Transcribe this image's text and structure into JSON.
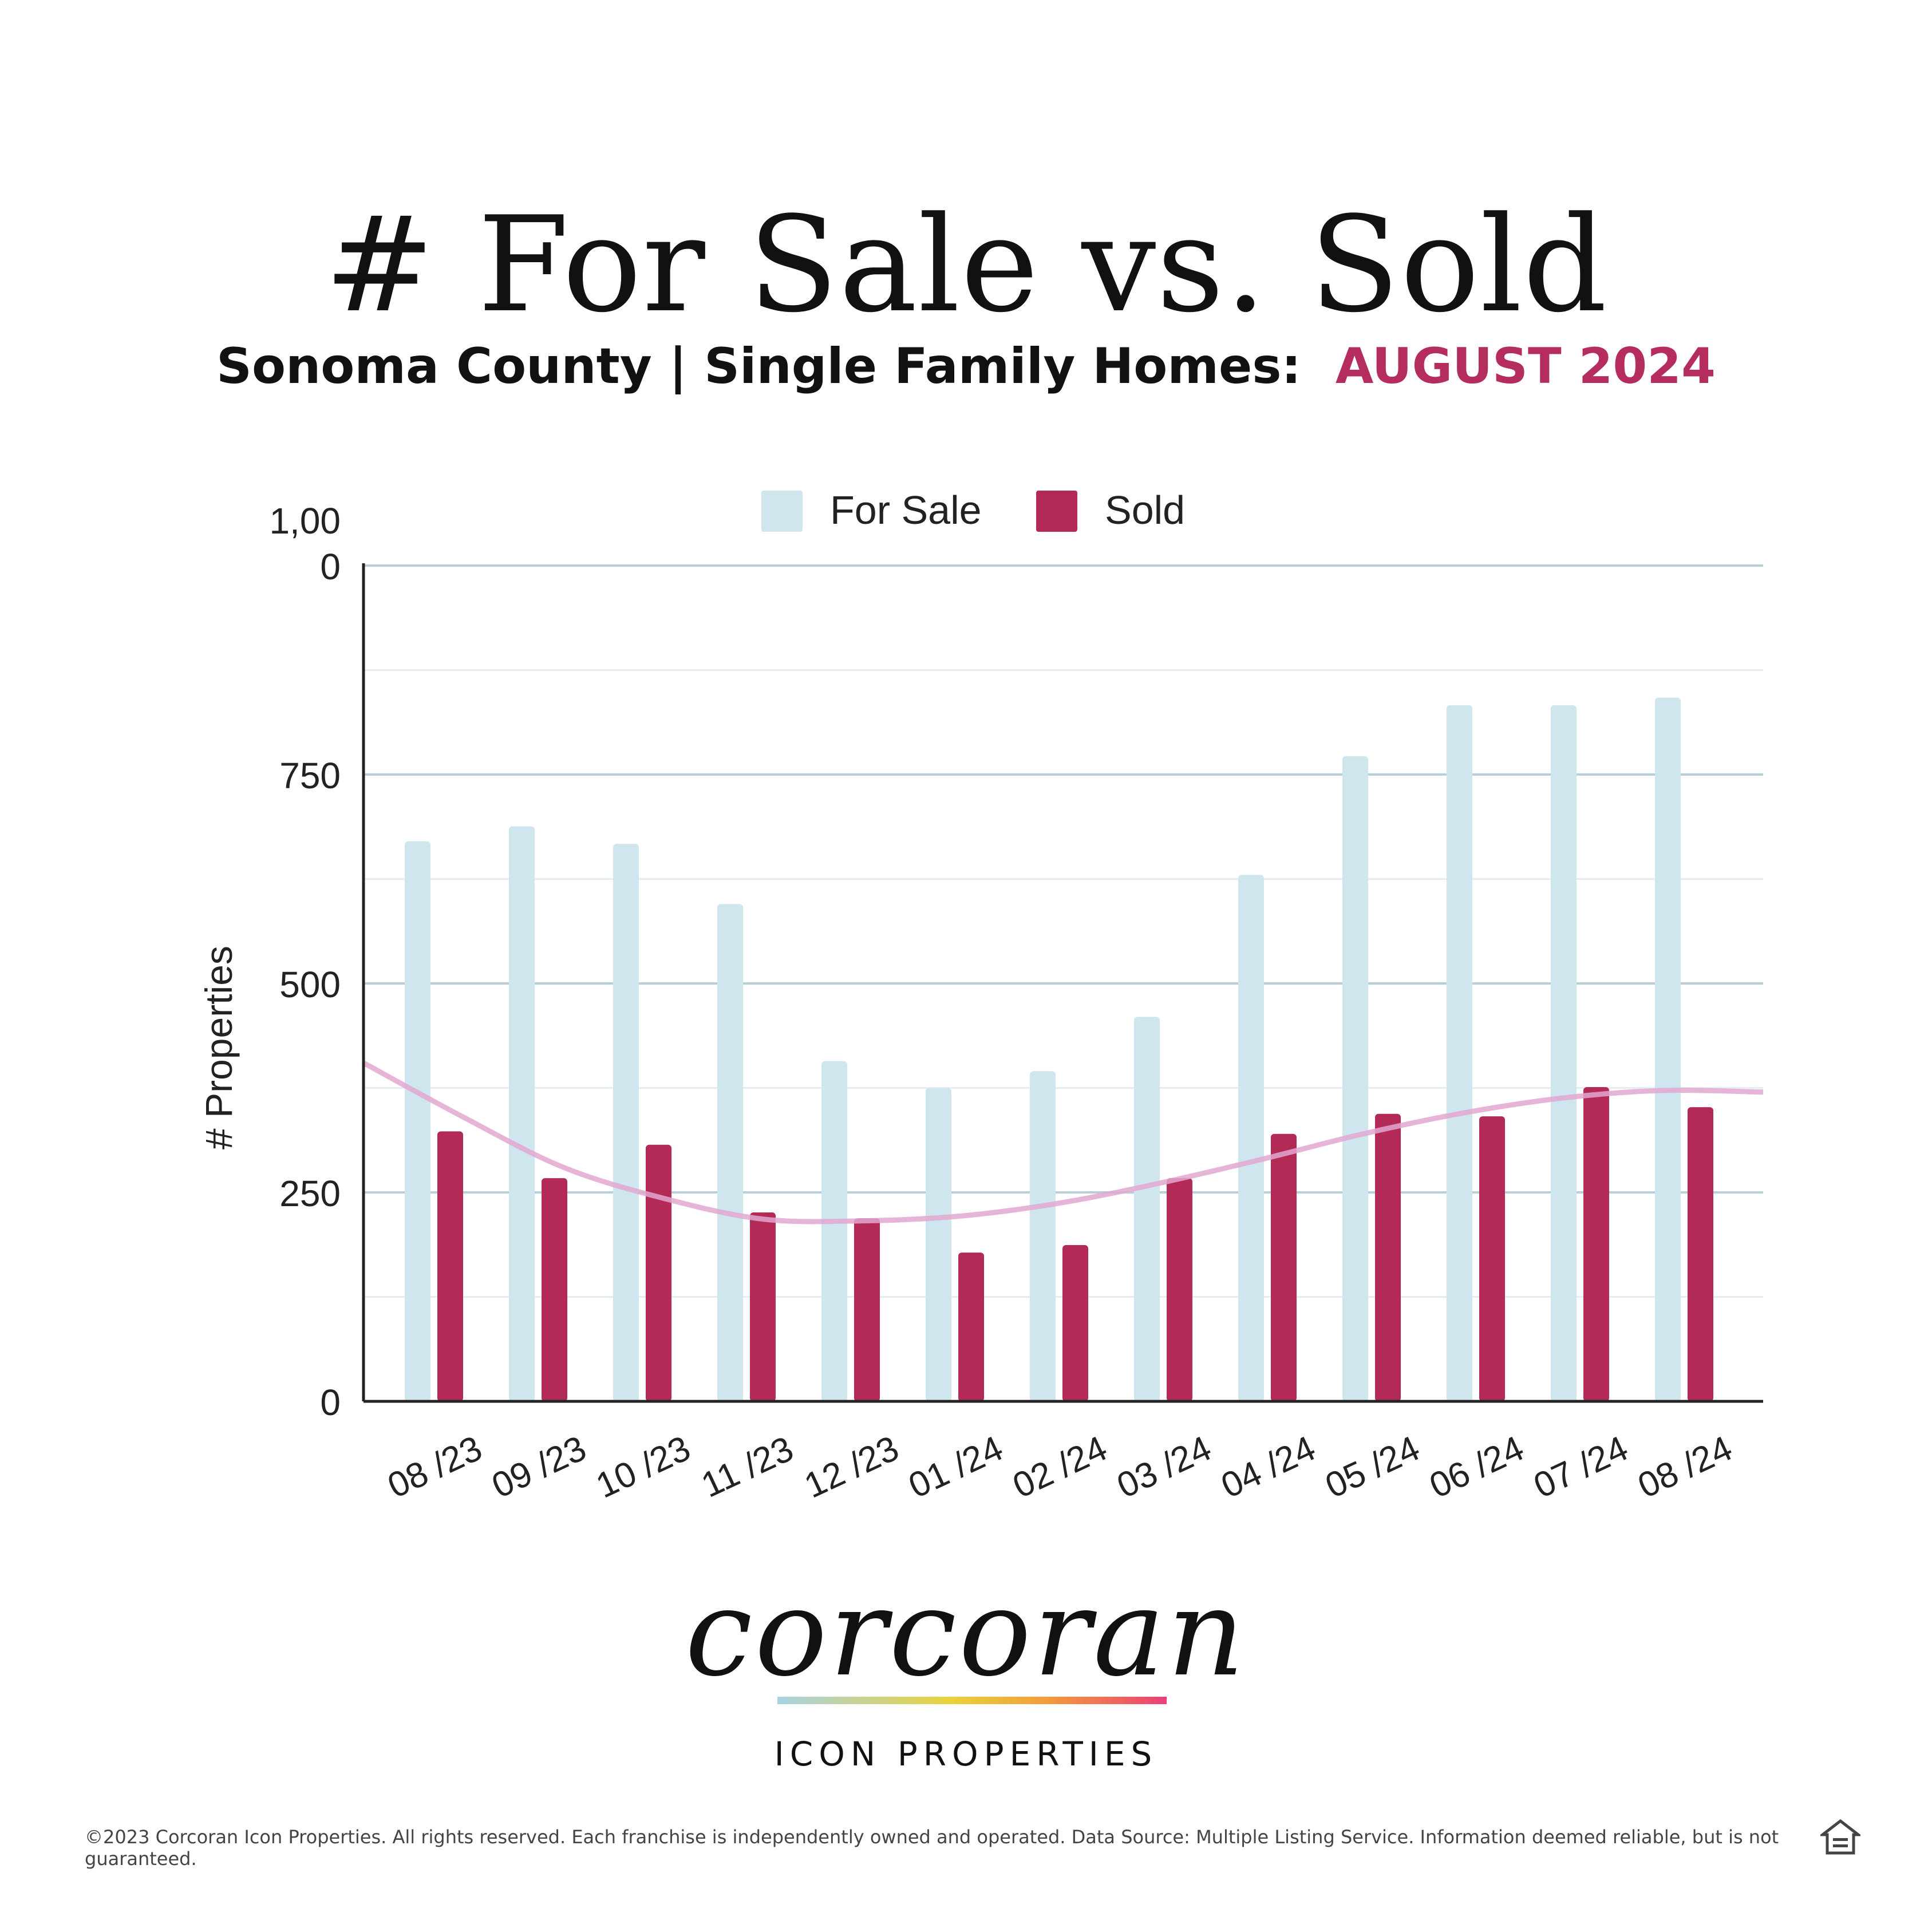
{
  "title": "# For Sale vs. Sold",
  "subtitle": {
    "main": "Sonoma County | Single Family Homes:",
    "highlight": "AUGUST 2024"
  },
  "chart_data": {
    "type": "bar",
    "categories": [
      "08 /23",
      "09 /23",
      "10 /23",
      "11 /23",
      "12 /23",
      "01 /24",
      "02 /24",
      "03 /24",
      "04 /24",
      "05 /24",
      "06 /24",
      "07 /24",
      "08 /24"
    ],
    "series": [
      {
        "name": "For Sale",
        "color": "#cfe6ee",
        "values": [
          670,
          688,
          667,
          595,
          407,
          375,
          395,
          460,
          630,
          772,
          833,
          833,
          842
        ]
      },
      {
        "name": "Sold",
        "color": "#b32a57",
        "values": [
          323,
          267,
          307,
          226,
          219,
          178,
          187,
          267,
          320,
          344,
          341,
          376,
          352
        ]
      }
    ],
    "trendline": {
      "series": "Sold",
      "color": "#e2a7d0",
      "values": [
        405,
        340,
        280,
        243,
        218,
        216,
        222,
        238,
        262,
        290,
        320,
        345,
        363,
        372,
        370
      ]
    },
    "ylabel": "# Properties",
    "ylim": [
      0,
      1000
    ],
    "yticks": [
      {
        "value": 0,
        "label": "0"
      },
      {
        "value": 250,
        "label": "250"
      },
      {
        "value": 500,
        "label": "500"
      },
      {
        "value": 750,
        "label": "750"
      },
      {
        "value": 1000,
        "label": "1,00\n0"
      }
    ],
    "minor_gridlines": [
      125,
      375,
      625,
      875
    ],
    "grid": true,
    "legend_position": "top-center"
  },
  "brand": {
    "name": "corcoran",
    "sub": "ICON PROPERTIES"
  },
  "footer": "©2023 Corcoran Icon Properties. All rights reserved. Each franchise is independently owned and operated. Data Source: Multiple Listing Service. Information deemed reliable, but is not guaranteed."
}
